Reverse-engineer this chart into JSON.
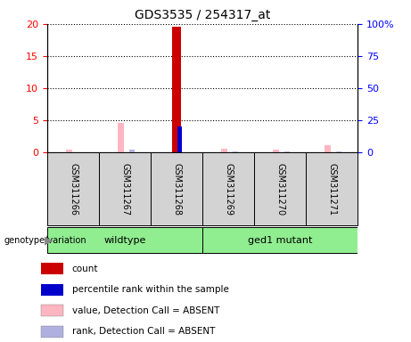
{
  "title": "GDS3535 / 254317_at",
  "samples": [
    "GSM311266",
    "GSM311267",
    "GSM311268",
    "GSM311269",
    "GSM311270",
    "GSM311271"
  ],
  "count_values": [
    0,
    0,
    19.5,
    0,
    0,
    0
  ],
  "percentile_values": [
    0,
    0,
    20.0,
    0,
    0,
    0
  ],
  "absent_value_values": [
    0.4,
    4.5,
    0,
    0.5,
    0.4,
    1.1
  ],
  "absent_rank_values": [
    0.2,
    2.0,
    0,
    0.55,
    0.5,
    0.8
  ],
  "count_color": "#cc0000",
  "percentile_color": "#0000cc",
  "absent_value_color": "#ffb6c1",
  "absent_rank_color": "#b0b0e0",
  "ylim_left": [
    0,
    20
  ],
  "ylim_right": [
    0,
    100
  ],
  "yticks_left": [
    0,
    5,
    10,
    15,
    20
  ],
  "yticks_right": [
    0,
    25,
    50,
    75,
    100
  ],
  "ytick_labels_right": [
    "0",
    "25",
    "50",
    "75",
    "100%"
  ],
  "plot_bg": "#ffffff",
  "sample_bg": "#d3d3d3",
  "group_bg": "#90EE90",
  "wildtype_label": "wildtype",
  "mutant_label": "ged1 mutant",
  "genotype_label": "genotype/variation",
  "legend_labels": [
    "count",
    "percentile rank within the sample",
    "value, Detection Call = ABSENT",
    "rank, Detection Call = ABSENT"
  ],
  "legend_colors": [
    "#cc0000",
    "#0000cc",
    "#ffb6c1",
    "#b0b0e0"
  ]
}
